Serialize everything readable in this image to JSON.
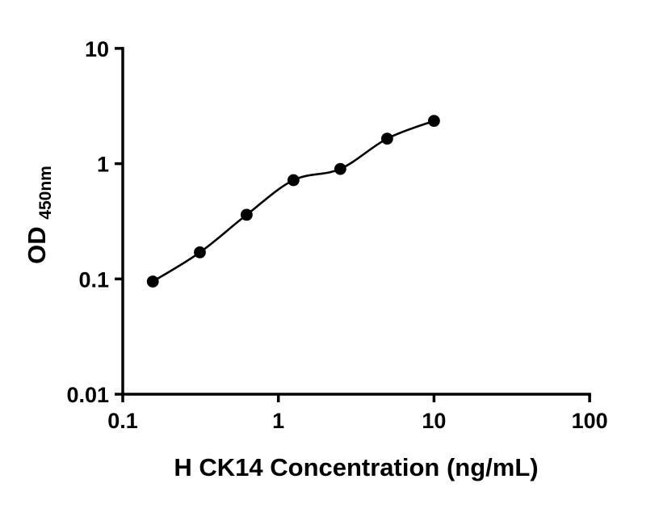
{
  "figure": {
    "background": "#ffffff"
  },
  "chart_data": {
    "type": "scatter",
    "xlabel": "H CK14 Concentration (ng/mL)",
    "ylabel": "OD",
    "ylabel_sub": "450nm",
    "xscale": "log",
    "yscale": "log",
    "xlim": [
      0.1,
      100
    ],
    "ylim": [
      0.01,
      10
    ],
    "x_ticks": [
      0.1,
      1,
      10,
      100
    ],
    "x_tick_labels": [
      "0.1",
      "1",
      "10",
      "100"
    ],
    "y_ticks": [
      0.01,
      0.1,
      1,
      10
    ],
    "y_tick_labels": [
      "0.01",
      "0.1",
      "1",
      "10"
    ],
    "x": [
      0.156,
      0.313,
      0.625,
      1.25,
      2.5,
      5,
      10
    ],
    "y": [
      0.095,
      0.17,
      0.36,
      0.72,
      0.9,
      1.65,
      2.35
    ],
    "has_fit_curve": true,
    "marker": "circle",
    "marker_color": "#000000",
    "curve_color": "#000000",
    "axis_color": "#000000",
    "grid": false,
    "legend": false
  }
}
